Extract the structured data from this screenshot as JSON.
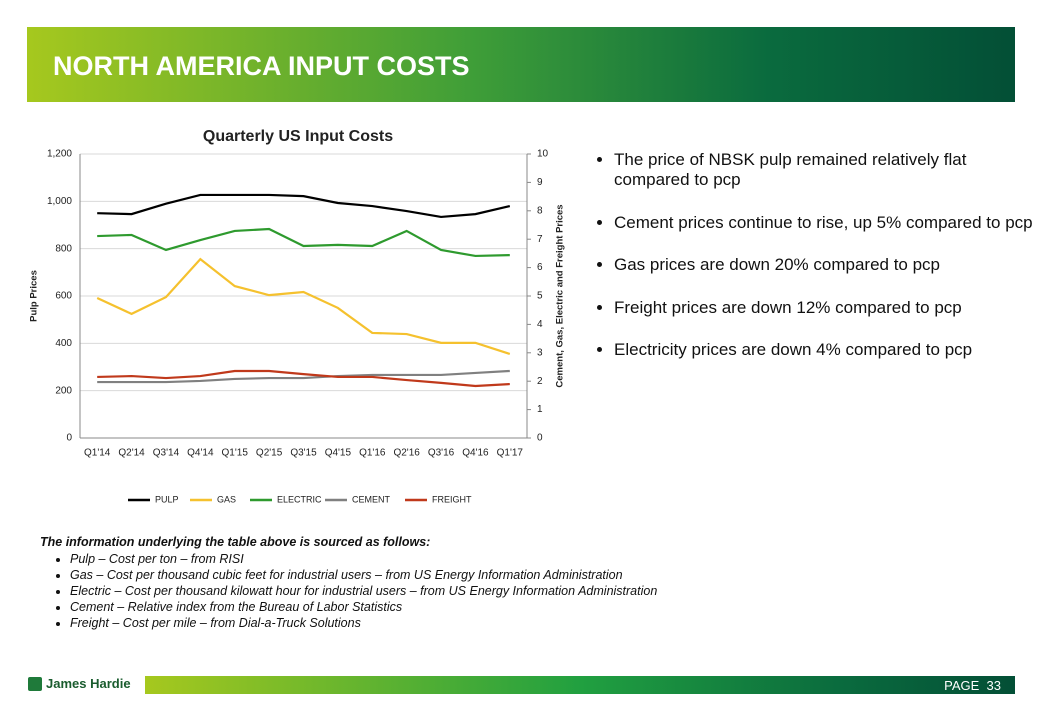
{
  "header": {
    "title": "NORTH AMERICA INPUT COSTS"
  },
  "chart_data": {
    "type": "line",
    "title": "Quarterly US Input Costs",
    "y_label": "Pulp Prices",
    "y2_label": "Cement, Gas, Electric and Freight Prices",
    "categories": [
      "Q1'14",
      "Q2'14",
      "Q3'14",
      "Q4'14",
      "Q1'15",
      "Q2'15",
      "Q3'15",
      "Q4'15",
      "Q1'16",
      "Q2'16",
      "Q3'16",
      "Q4'16",
      "Q1'17"
    ],
    "ylim": [
      0,
      1200
    ],
    "yticks": [
      0,
      200,
      400,
      600,
      800,
      {
        "value": 1000,
        "label": "1,000"
      },
      {
        "value": 1200,
        "label": "1,200"
      }
    ],
    "y2lim": [
      0,
      10
    ],
    "y2ticks": [
      0,
      1,
      2,
      3,
      4,
      5,
      6,
      7,
      8,
      9,
      10
    ],
    "grid": true,
    "legend": "bottom",
    "series": [
      {
        "name": "PULP",
        "color": "#000000",
        "values": [
          950,
          946,
          990,
          1027,
          1027,
          1027,
          1022,
          993,
          980,
          959,
          934,
          946,
          980
        ]
      },
      {
        "name": "GAS",
        "color": "#f5c12e",
        "axis": "y2",
        "values": [
          4.93,
          4.37,
          4.96,
          6.3,
          5.35,
          5.03,
          5.14,
          4.58,
          3.7,
          3.66,
          3.35,
          3.35,
          2.96
        ]
      },
      {
        "name": "ELECTRIC",
        "color": "#2e9a2e",
        "axis": "y2",
        "values": [
          7.11,
          7.15,
          6.62,
          6.97,
          7.29,
          7.36,
          6.76,
          6.8,
          6.76,
          7.29,
          6.62,
          6.41,
          6.44
        ]
      },
      {
        "name": "CEMENT",
        "color": "#808080",
        "axis": "y2",
        "values": [
          1.97,
          1.97,
          1.97,
          2.01,
          2.08,
          2.11,
          2.11,
          2.18,
          2.22,
          2.22,
          2.22,
          2.29,
          2.36
        ]
      },
      {
        "name": "FREIGHT",
        "color": "#c0391b",
        "axis": "y2",
        "values": [
          2.15,
          2.18,
          2.11,
          2.18,
          2.36,
          2.36,
          2.25,
          2.15,
          2.15,
          2.04,
          1.94,
          1.83,
          1.9
        ]
      }
    ]
  },
  "bullets": [
    "The price of NBSK pulp remained relatively flat compared to pcp",
    "Cement prices continue to rise, up 5% compared to pcp",
    "Gas prices are down 20% compared to pcp",
    "Freight prices are down 12% compared to pcp",
    "Electricity prices are down 4% compared to pcp"
  ],
  "notes": {
    "heading": "The information underlying the table above is sourced as follows:",
    "items": [
      "Pulp – Cost per ton – from RISI",
      "Gas – Cost per thousand cubic feet for industrial users – from US Energy Information Administration",
      "Electric – Cost per thousand kilowatt hour for industrial users – from US Energy Information Administration",
      "Cement – Relative index from the Bureau of Labor Statistics",
      "Freight – Cost per mile – from Dial-a-Truck Solutions"
    ]
  },
  "footer": {
    "logo": "James Hardie",
    "page_label": "PAGE",
    "page_number": "33"
  }
}
